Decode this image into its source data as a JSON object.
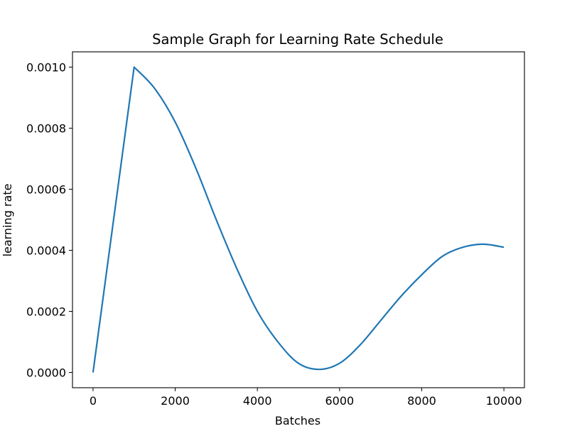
{
  "chart_data": {
    "type": "line",
    "title": "Sample Graph for Learning Rate Schedule",
    "xlabel": "Batches",
    "ylabel": "learning rate",
    "xlim": [
      -500,
      10500
    ],
    "ylim": [
      -5e-05,
      0.00105
    ],
    "x_ticks": [
      0,
      2000,
      4000,
      6000,
      8000,
      10000
    ],
    "x_tick_labels": [
      "0",
      "2000",
      "4000",
      "6000",
      "8000",
      "10000"
    ],
    "y_ticks": [
      0.0,
      0.0002,
      0.0004,
      0.0006,
      0.0008,
      0.001
    ],
    "y_tick_labels": [
      "0.0000",
      "0.0002",
      "0.0004",
      "0.0006",
      "0.0008",
      "0.0010"
    ],
    "grid": false,
    "legend": "none",
    "line_color": "#1f77b4",
    "series": [
      {
        "x": [
          0,
          1000,
          1500,
          2000,
          2500,
          3000,
          3500,
          4000,
          4500,
          5000,
          5500,
          6000,
          6500,
          7000,
          7500,
          8000,
          8500,
          9000,
          9500,
          10000
        ],
        "values": [
          0.0,
          0.001,
          0.00093,
          0.00082,
          0.00067,
          0.0005,
          0.00034,
          0.0002,
          0.0001,
          3e-05,
          1e-05,
          3e-05,
          9e-05,
          0.00017,
          0.00025,
          0.00032,
          0.00038,
          0.00041,
          0.00042,
          0.00041
        ]
      }
    ]
  }
}
